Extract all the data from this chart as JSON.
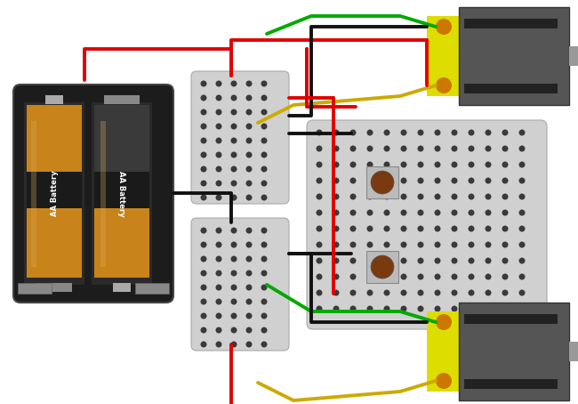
{
  "bg_color": "#ffffff",
  "wire_red": "#e00000",
  "wire_black": "#111111",
  "wire_green": "#00aa00",
  "wire_yellow": "#ccaa00"
}
